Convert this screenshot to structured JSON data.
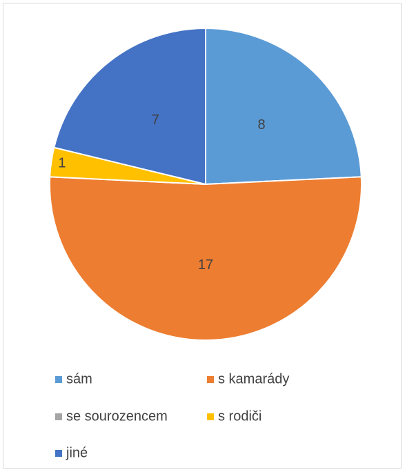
{
  "chart_data": {
    "type": "pie",
    "categories": [
      "sám",
      "s kamarády",
      "se sourozencem",
      "s rodiči",
      "jiné"
    ],
    "values": [
      8,
      17,
      0,
      1,
      7
    ],
    "colors": [
      "#5b9bd5",
      "#ed7d31",
      "#a5a5a5",
      "#ffc000",
      "#4472c4"
    ],
    "legend": "bottom"
  }
}
